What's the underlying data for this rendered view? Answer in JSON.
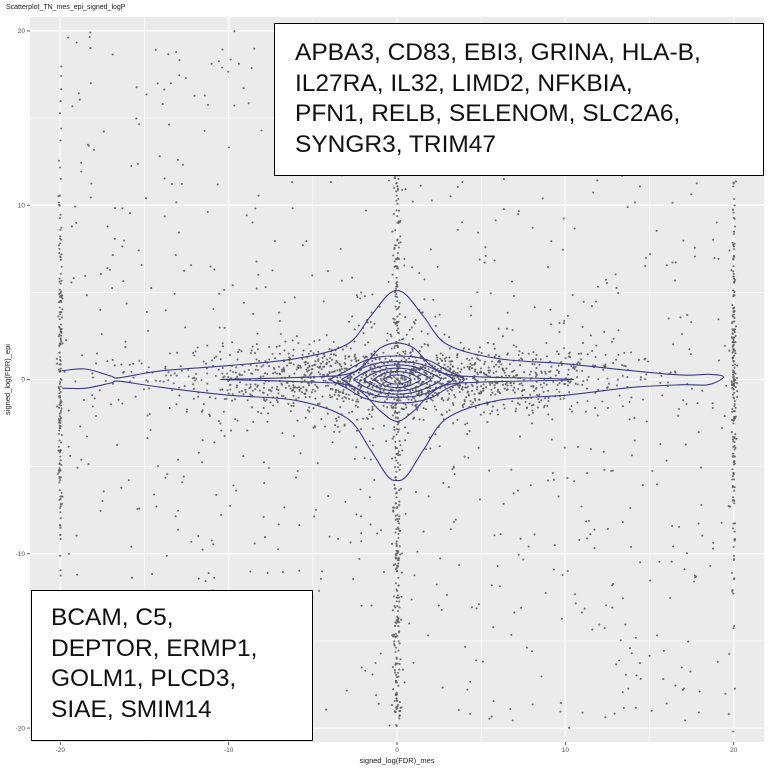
{
  "chart_data": {
    "type": "scatter",
    "title": "Scatterplot_TN_mes_epi_signed_logP",
    "xlabel": "signed_log(FDR)_mes",
    "ylabel": "signed_log(FDR)_epi",
    "xlim": [
      -21.8,
      21.8
    ],
    "ylim": [
      -20.8,
      20.8
    ],
    "x_ticks": [
      -20,
      -10,
      0,
      10,
      20
    ],
    "y_ticks": [
      -20,
      -10,
      0,
      10,
      20
    ],
    "x_tick_labels": [
      "-20",
      "-10",
      "0",
      "10",
      "20"
    ],
    "y_tick_labels": [
      "-20",
      "-10",
      "0",
      "10",
      "20"
    ],
    "grid": true,
    "point_color": "#5a5a5a",
    "contour_color": "#3b3b8f",
    "panel_background": "#ebebeb",
    "grid_color": "#ffffff",
    "density_contours": [
      {
        "x": [
          -19.9,
          -18.5,
          -17,
          -16.5,
          -14,
          -10,
          -6,
          -3,
          -1.6,
          -0.6,
          0,
          0.6,
          1.6,
          3,
          6,
          10,
          14,
          17,
          18.5,
          19.4,
          18.5,
          17,
          14,
          10,
          6,
          3,
          1.6,
          0.6,
          0,
          -0.6,
          -1.6,
          -3,
          -6,
          -10,
          -14,
          -16.5,
          -17,
          -18.5,
          -19.9
        ],
        "y": [
          0.5,
          0.6,
          0.2,
          0.1,
          0.5,
          0.8,
          1.2,
          2,
          3.6,
          4.8,
          5.1,
          4.8,
          3.6,
          2,
          1.2,
          0.9,
          0.5,
          0.25,
          0.3,
          0.15,
          -0.3,
          -0.3,
          -0.45,
          -0.9,
          -1.2,
          -2.2,
          -4,
          -5.5,
          -5.8,
          -5.5,
          -4,
          -2.2,
          -1.2,
          -0.9,
          -0.45,
          -0.1,
          -0.2,
          -0.5,
          -0.5
        ]
      },
      {
        "x": [
          -10.5,
          -5,
          -3,
          -2,
          -1,
          0,
          1,
          2,
          3,
          5,
          10.5,
          5,
          3,
          2,
          1,
          0,
          -1,
          -2,
          -3,
          -5,
          -10.5
        ],
        "y": [
          0,
          0.15,
          0.3,
          0.8,
          1.8,
          2.1,
          1.8,
          0.8,
          0.3,
          0.15,
          0,
          -0.15,
          -0.3,
          -0.8,
          -1.8,
          -2.4,
          -1.8,
          -0.8,
          -0.3,
          -0.15,
          0
        ]
      },
      {
        "x": [
          -4,
          -3,
          -2,
          -1,
          0,
          1,
          2,
          3,
          4,
          3,
          2,
          1,
          0,
          -1,
          -2,
          -3,
          -4
        ],
        "y": [
          0,
          0.5,
          1.05,
          1.3,
          1.35,
          1.3,
          1.05,
          0.5,
          0,
          -0.5,
          -1.05,
          -1.3,
          -1.35,
          -1.3,
          -1.05,
          -0.5,
          0
        ]
      },
      {
        "x": [
          -3.3,
          -2.5,
          -1.7,
          -0.9,
          0,
          0.9,
          1.7,
          2.5,
          3.3,
          2.5,
          1.7,
          0.9,
          0,
          -0.9,
          -1.7,
          -2.5,
          -3.3
        ],
        "y": [
          0,
          0.45,
          0.8,
          0.98,
          1.02,
          0.98,
          0.8,
          0.45,
          0,
          -0.45,
          -0.8,
          -0.98,
          -1.02,
          -0.98,
          -0.8,
          -0.45,
          0
        ]
      },
      {
        "x": [
          -2.6,
          -1.95,
          -1.3,
          -0.65,
          0,
          0.65,
          1.3,
          1.95,
          2.6,
          1.95,
          1.3,
          0.65,
          0,
          -0.65,
          -1.3,
          -1.95,
          -2.6
        ],
        "y": [
          0,
          0.4,
          0.65,
          0.8,
          0.84,
          0.8,
          0.65,
          0.4,
          0,
          -0.4,
          -0.65,
          -0.8,
          -0.84,
          -0.8,
          -0.65,
          -0.4,
          0
        ]
      },
      {
        "x": [
          -2.0,
          -1.5,
          -1.0,
          -0.5,
          0,
          0.5,
          1.0,
          1.5,
          2.0,
          1.5,
          1.0,
          0.5,
          0,
          -0.5,
          -1.0,
          -1.5,
          -2.0
        ],
        "y": [
          0,
          0.3,
          0.5,
          0.62,
          0.65,
          0.62,
          0.5,
          0.3,
          0,
          -0.3,
          -0.5,
          -0.62,
          -0.65,
          -0.62,
          -0.5,
          -0.3,
          0
        ]
      },
      {
        "x": [
          -1.4,
          -1.05,
          -0.7,
          -0.35,
          0,
          0.35,
          0.7,
          1.05,
          1.4,
          1.05,
          0.7,
          0.35,
          0,
          -0.35,
          -0.7,
          -1.05,
          -1.4
        ],
        "y": [
          0,
          0.22,
          0.36,
          0.44,
          0.46,
          0.44,
          0.36,
          0.22,
          0,
          -0.22,
          -0.36,
          -0.44,
          -0.46,
          -0.44,
          -0.36,
          -0.22,
          0
        ]
      },
      {
        "x": [
          -0.8,
          -0.6,
          -0.4,
          -0.2,
          0,
          0.2,
          0.4,
          0.6,
          0.8,
          0.6,
          0.4,
          0.2,
          0,
          -0.2,
          -0.4,
          -0.6,
          -0.8
        ],
        "y": [
          0,
          0.13,
          0.21,
          0.25,
          0.26,
          0.25,
          0.21,
          0.13,
          0,
          -0.13,
          -0.21,
          -0.25,
          -0.26,
          -0.25,
          -0.21,
          -0.13,
          0
        ]
      }
    ]
  },
  "annotations": {
    "top_label": "APBA3, CD83, EBI3, GRINA, HLA-B,\nIL27RA, IL32, LIMD2, NFKBIA,\nPFN1, RELB, SELENOM, SLC2A6,\nSYNGR3, TRIM47",
    "bottom_label": "BCAM, C5,\nDEPTOR, ERMP1,\nGOLM1, PLCD3,\nSIAE, SMIM14"
  }
}
